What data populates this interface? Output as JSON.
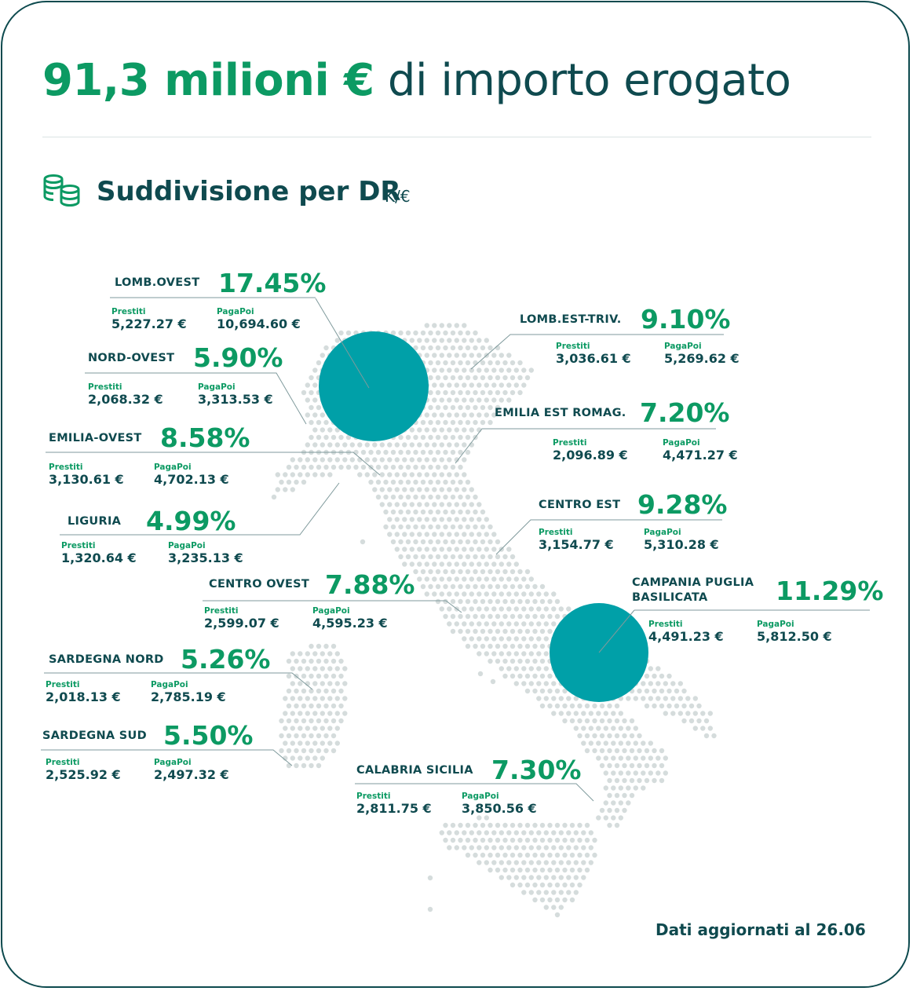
{
  "headline": {
    "strong": "91,3 milioni €",
    "rest": " di importo erogato"
  },
  "section": {
    "title": "Suddivisione per DR",
    "unit": "K/€",
    "icon": "coins-stack-icon"
  },
  "colors": {
    "accent_green": "#0c9a63",
    "dark_text": "#0f4a4f",
    "bubble": "#00a0a8",
    "map_dots": "#d5dcdc"
  },
  "labels": {
    "prestiti": "Prestiti",
    "pagapoi": "PagaPoi"
  },
  "regions": [
    {
      "name": "LOMB.OVEST",
      "pct": "17.45%",
      "prestiti": "5,227.27 €",
      "pagapoi": "10,694.60 €"
    },
    {
      "name": "NORD-OVEST",
      "pct": "5.90%",
      "prestiti": "2,068.32 €",
      "pagapoi": "3,313.53 €"
    },
    {
      "name": "EMILIA-OVEST",
      "pct": "8.58%",
      "prestiti": "3,130.61 €",
      "pagapoi": "4,702.13 €"
    },
    {
      "name": "LIGURIA",
      "pct": "4.99%",
      "prestiti": "1,320.64 €",
      "pagapoi": "3,235.13 €"
    },
    {
      "name": "CENTRO OVEST",
      "pct": "7.88%",
      "prestiti": "2,599.07 €",
      "pagapoi": "4,595.23 €"
    },
    {
      "name": "SARDEGNA NORD",
      "pct": "5.26%",
      "prestiti": "2,018.13 €",
      "pagapoi": "2,785.19 €"
    },
    {
      "name": "SARDEGNA SUD",
      "pct": "5.50%",
      "prestiti": "2,525.92 €",
      "pagapoi": "2,497.32 €"
    },
    {
      "name": "CALABRIA SICILIA",
      "pct": "7.30%",
      "prestiti": "2,811.75 €",
      "pagapoi": "3,850.56 €"
    },
    {
      "name": "LOMB.EST-TRIV.",
      "pct": "9.10%",
      "prestiti": "3,036.61 €",
      "pagapoi": "5,269.62 €"
    },
    {
      "name": "EMILIA EST ROMAG.",
      "pct": "7.20%",
      "prestiti": "2,096.89 €",
      "pagapoi": "4,471.27 €"
    },
    {
      "name": "CENTRO EST",
      "pct": "9.28%",
      "prestiti": "3,154.77 €",
      "pagapoi": "5,310.28 €"
    },
    {
      "name": "CAMPANIA PUGLIA\nBASILICATA",
      "pct": "11.29%",
      "prestiti": "4,491.23 €",
      "pagapoi": "5,812.50 €"
    }
  ],
  "footnote": "Dati aggiornati al 26.06"
}
